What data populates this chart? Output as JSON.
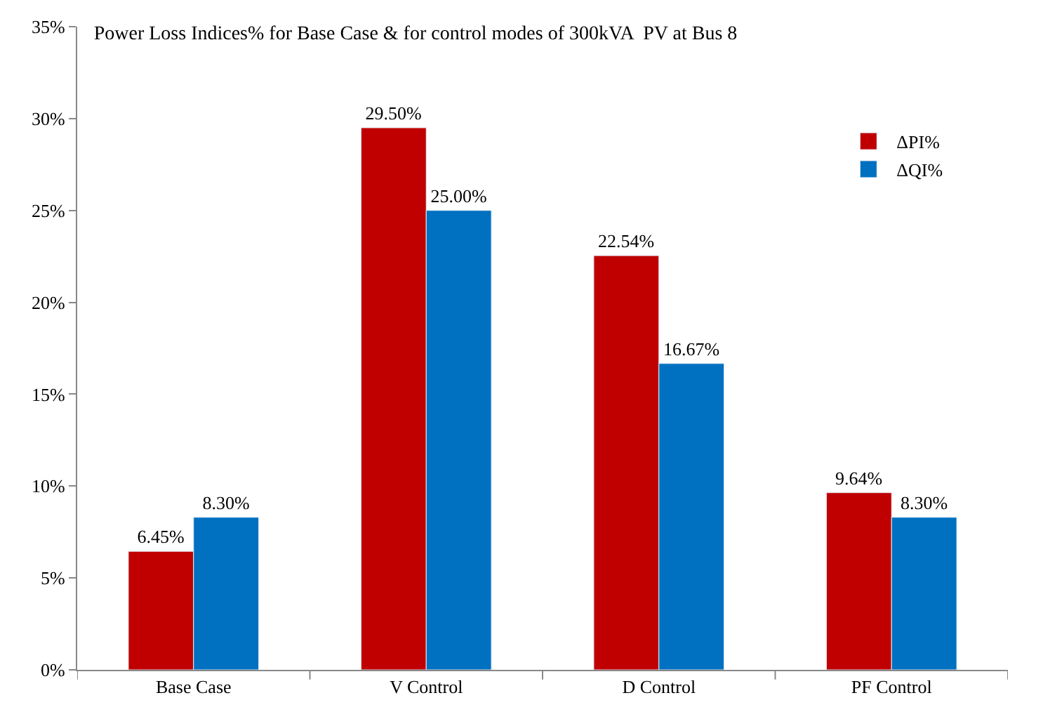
{
  "chart_data": {
    "type": "bar",
    "title": "Power Loss Indices% for Base Case & for control modes of 300kVA  PV at Bus 8",
    "categories": [
      "Base Case",
      "V Control",
      "D Control",
      "PF Control"
    ],
    "series": [
      {
        "name": "ΔPI%",
        "color": "#c00000",
        "values": [
          6.45,
          29.5,
          22.54,
          9.64
        ],
        "value_labels": [
          "6.45%",
          "29.50%",
          "22.54%",
          "9.64%"
        ]
      },
      {
        "name": "ΔQI%",
        "color": "#0070c0",
        "values": [
          8.3,
          25.0,
          16.67,
          8.3
        ],
        "value_labels": [
          "8.30%",
          "25.00%",
          "16.67%",
          "8.30%"
        ]
      }
    ],
    "ylim": [
      0,
      35
    ],
    "yticks": [
      {
        "value": 0,
        "label": "0%"
      },
      {
        "value": 5,
        "label": "5%"
      },
      {
        "value": 10,
        "label": "10%"
      },
      {
        "value": 15,
        "label": "15%"
      },
      {
        "value": 20,
        "label": "20%"
      },
      {
        "value": 25,
        "label": "25%"
      },
      {
        "value": 30,
        "label": "30%"
      },
      {
        "value": 35,
        "label": "35%"
      }
    ],
    "legend": "right"
  }
}
